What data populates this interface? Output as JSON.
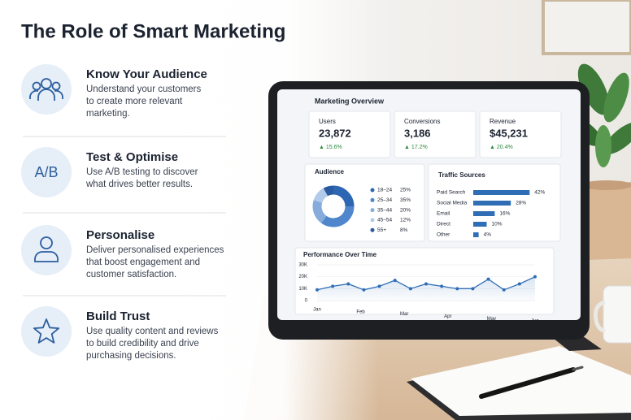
{
  "title": "The Role of Smart Marketing",
  "items": [
    {
      "title": "Know Your Audience",
      "description": [
        "Understand your customers",
        "to create more relevant",
        "marketing."
      ]
    },
    {
      "title": "Test & Optimise",
      "icon_text": "A/B",
      "description": [
        "Use A/B testing to discover",
        "what drives better results."
      ]
    },
    {
      "title": "Personalise",
      "description": [
        "Deliver personalised experiences",
        "that boost engagement and",
        "customer satisfaction."
      ]
    },
    {
      "title": "Build Trust",
      "description": [
        "Use quality content and reviews",
        "to build credibility and drive",
        "purchasing decisions."
      ]
    }
  ],
  "dashboard": {
    "title": "Marketing Overview",
    "kpis": [
      {
        "label": "Users",
        "value": "23,872",
        "change": "▲ 15.6%"
      },
      {
        "label": "Conversions",
        "value": "3,186",
        "change": "▲ 17.2%"
      },
      {
        "label": "Revenue",
        "value": "$45,231",
        "change": "▲ 20.4%"
      }
    ],
    "audience": {
      "type": "pie",
      "title": "Audience",
      "categories": [
        "18–24",
        "25–34",
        "35–44",
        "45–54",
        "55+"
      ],
      "values": [
        25,
        35,
        20,
        12,
        8
      ],
      "value_labels": [
        "25%",
        "35%",
        "20%",
        "12%",
        "8%"
      ],
      "colors": [
        "#2d66b2",
        "#4f86cc",
        "#86acdc",
        "#b3cbea",
        "#2a5aa0"
      ]
    },
    "traffic": {
      "type": "bar",
      "title": "Traffic Sources",
      "categories": [
        "Paid Search",
        "Social Media",
        "Email",
        "Direct",
        "Other"
      ],
      "values": [
        42,
        28,
        16,
        10,
        4
      ],
      "value_labels": [
        "42%",
        "28%",
        "16%",
        "10%",
        "4%"
      ],
      "color": "#2f6db5"
    },
    "performance": {
      "type": "line",
      "title": "Performance Over Time",
      "categories": [
        "Jan",
        "Feb",
        "Mar",
        "Apr",
        "May",
        "Jun"
      ],
      "values": [
        9000,
        12000,
        14000,
        9000,
        12000,
        17000,
        10000,
        14000,
        12000,
        10000,
        10000,
        18000,
        9000,
        14000,
        20000
      ],
      "ylim": [
        0,
        30000
      ],
      "yticks": [
        0,
        {
          "value": 10000,
          "label": "10K"
        },
        {
          "value": 20000,
          "label": "20K"
        },
        {
          "value": 30000,
          "label": "30K"
        }
      ],
      "color": "#2f6db5"
    }
  }
}
